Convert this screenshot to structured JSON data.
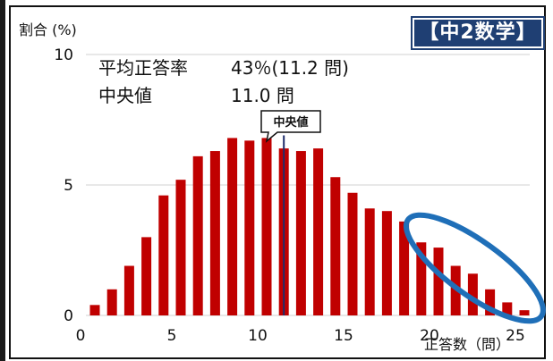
{
  "header": {
    "badge": "【中2数学】",
    "y_unit_label": "割合 (%)"
  },
  "stats": {
    "mean_label": "平均正答率",
    "mean_value": "43％(11.2 問)",
    "median_label": "中央値",
    "median_value": "11.0 問"
  },
  "callout": "中央値",
  "x_unit_label": "正答数（問）",
  "colors": {
    "bar": "#c00000",
    "median_line": "#1f2d6b",
    "ellipse": "#1f6fb8",
    "badge_bg": "#1f3f73"
  },
  "chart_data": {
    "type": "bar",
    "x": [
      0,
      1,
      2,
      3,
      4,
      5,
      6,
      7,
      8,
      9,
      10,
      11,
      12,
      13,
      14,
      15,
      16,
      17,
      18,
      19,
      20,
      21,
      22,
      23,
      24,
      25
    ],
    "values": [
      0.4,
      1.0,
      1.9,
      3.0,
      4.6,
      5.2,
      6.1,
      6.3,
      6.8,
      6.7,
      6.8,
      6.4,
      6.3,
      6.4,
      5.3,
      4.7,
      4.1,
      4.0,
      3.6,
      2.8,
      2.6,
      1.9,
      1.6,
      1.0,
      0.5,
      0.2
    ],
    "xticks": [
      "0",
      "5",
      "10",
      "15",
      "20",
      "25"
    ],
    "yticks": [
      "0",
      "5",
      "10"
    ],
    "median": 11.0,
    "highlight_range": [
      19,
      25
    ],
    "grid": true,
    "legend": "none"
  }
}
